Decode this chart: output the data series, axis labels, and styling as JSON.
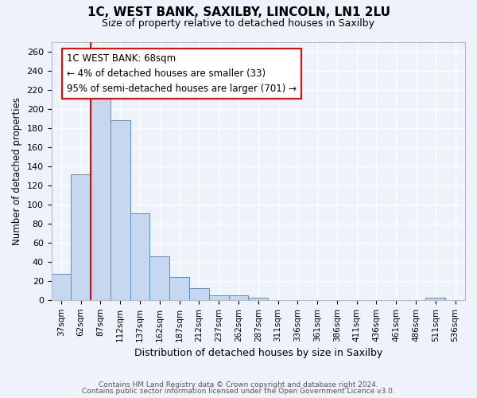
{
  "title_line1": "1C, WEST BANK, SAXILBY, LINCOLN, LN1 2LU",
  "title_line2": "Size of property relative to detached houses in Saxilby",
  "xlabel": "Distribution of detached houses by size in Saxilby",
  "ylabel": "Number of detached properties",
  "categories": [
    "37sqm",
    "62sqm",
    "87sqm",
    "112sqm",
    "137sqm",
    "162sqm",
    "187sqm",
    "212sqm",
    "237sqm",
    "262sqm",
    "287sqm",
    "311sqm",
    "336sqm",
    "361sqm",
    "386sqm",
    "411sqm",
    "436sqm",
    "461sqm",
    "486sqm",
    "511sqm",
    "536sqm"
  ],
  "values": [
    27,
    131,
    213,
    188,
    91,
    46,
    24,
    12,
    5,
    5,
    2,
    0,
    0,
    0,
    0,
    0,
    0,
    0,
    0,
    2,
    0
  ],
  "bar_color": "#c5d8f0",
  "bar_edge_color": "#5a8fc0",
  "red_line_x": 1.5,
  "annotation_box_text": "1C WEST BANK: 68sqm\n← 4% of detached houses are smaller (33)\n95% of semi-detached houses are larger (701) →",
  "ylim": [
    0,
    270
  ],
  "yticks": [
    0,
    20,
    40,
    60,
    80,
    100,
    120,
    140,
    160,
    180,
    200,
    220,
    240,
    260
  ],
  "background_color": "#eef2fb",
  "grid_color": "#ffffff",
  "footer_line1": "Contains HM Land Registry data © Crown copyright and database right 2024.",
  "footer_line2": "Contains public sector information licensed under the Open Government Licence v3.0."
}
